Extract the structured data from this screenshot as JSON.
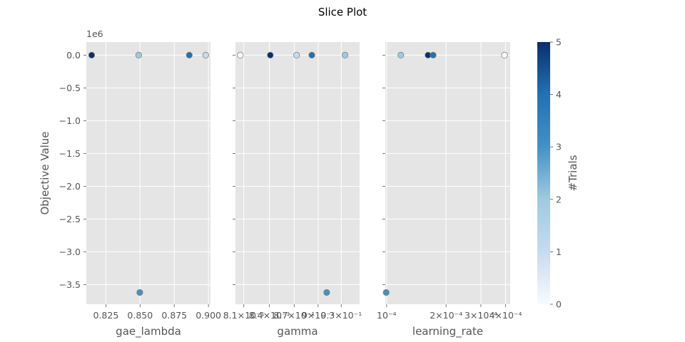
{
  "chart_data": {
    "type": "scatter",
    "title": "Slice Plot",
    "ylabel": "Objective Value",
    "y_offset_label": "1e6",
    "ylim": [
      -3.8,
      0.2
    ],
    "yticks": [
      0.0,
      -0.5,
      -1.0,
      -1.5,
      -2.0,
      -2.5,
      -3.0,
      -3.5
    ],
    "ytick_labels": [
      "0.0",
      "−0.5",
      "−1.0",
      "−1.5",
      "−2.0",
      "−2.5",
      "−3.0",
      "−3.5"
    ],
    "grid": true,
    "panels": [
      {
        "xlabel": "gae_lambda",
        "xscale": "linear",
        "xlim": [
          0.8107,
          0.9015
        ],
        "xticks": [
          0.825,
          0.85,
          0.875,
          0.9
        ],
        "xtick_labels": [
          "0.825",
          "0.850",
          "0.875",
          "0.900"
        ],
        "points": [
          {
            "x": 0.8146,
            "y": 0.0,
            "trial": 5
          },
          {
            "x": 0.849,
            "y": 0.0,
            "trial": 2
          },
          {
            "x": 0.8498,
            "y": -3.62,
            "trial": 3
          },
          {
            "x": 0.886,
            "y": 0.0,
            "trial": 4
          },
          {
            "x": 0.898,
            "y": 0.0,
            "trial": 1
          }
        ]
      },
      {
        "xlabel": "gamma",
        "xscale": "log",
        "xlim": [
          0.8005,
          0.9545
        ],
        "xticks": [
          0.81,
          0.84,
          0.87,
          0.9,
          0.93
        ],
        "xtick_labels": [
          "8.1×10⁻¹",
          "8.4×10⁻¹",
          "8.7×10⁻¹",
          "9×10⁻¹",
          "9.3×10⁻¹"
        ],
        "points": [
          {
            "x": 0.806,
            "y": 0.0,
            "trial": 0
          },
          {
            "x": 0.841,
            "y": 0.0,
            "trial": 5
          },
          {
            "x": 0.873,
            "y": 0.0,
            "trial": 1
          },
          {
            "x": 0.892,
            "y": 0.0,
            "trial": 4
          },
          {
            "x": 0.911,
            "y": -3.62,
            "trial": 3
          },
          {
            "x": 0.935,
            "y": 0.0,
            "trial": 2
          }
        ]
      },
      {
        "xlabel": "learning_rate",
        "xscale": "log",
        "xlim": [
          9.85e-05,
          0.000422
        ],
        "xticks": [
          0.0001,
          0.0002,
          0.0003,
          0.0004
        ],
        "xtick_labels": [
          "10⁻⁴",
          "2×10⁻⁴",
          "3×10⁻⁴",
          "4×10⁻⁴"
        ],
        "points": [
          {
            "x": 9.95e-05,
            "y": -3.62,
            "trial": 3
          },
          {
            "x": 0.000118,
            "y": 0.0,
            "trial": 2
          },
          {
            "x": 0.000162,
            "y": 0.0,
            "trial": 5
          },
          {
            "x": 0.000172,
            "y": 0.0,
            "trial": 4
          },
          {
            "x": 0.000395,
            "y": 0.0,
            "trial": 0
          }
        ]
      }
    ],
    "colorbar": {
      "label": "#Trials",
      "range": [
        0,
        5
      ],
      "ticks": [
        0,
        1,
        2,
        3,
        4,
        5
      ],
      "tick_labels": [
        "0",
        "1",
        "2",
        "3",
        "4",
        "5"
      ],
      "colormap": "Blues",
      "colors": [
        "#f7fbff",
        "#c6dbef",
        "#9ecae1",
        "#4292c6",
        "#2171b5",
        "#08306b"
      ]
    }
  }
}
